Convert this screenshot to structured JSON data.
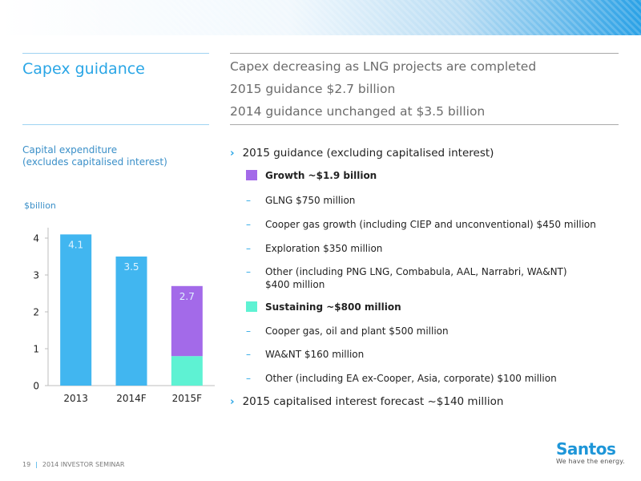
{
  "slide": {
    "title": "Capex guidance",
    "headline": [
      "Capex decreasing as LNG projects are completed",
      "2015 guidance $2.7 billion",
      "2014 guidance unchanged at $3.5 billion"
    ],
    "chart_caption": [
      "Capital expenditure",
      "(excludes capitalised interest)"
    ]
  },
  "guidance": {
    "bullet1": "2015 guidance (excluding capitalised interest)",
    "growth": {
      "label": "Growth ~$1.9 billion",
      "color": "#a36ae9",
      "items": [
        "GLNG $750 million",
        "Cooper gas growth (including CIEP and unconventional) $450 million",
        "Exploration $350 million"
      ],
      "other_line1": "Other (including PNG LNG, Combabula, AAL, Narrabri, WA&NT)",
      "other_line2": "$400 million"
    },
    "sustaining": {
      "label": "Sustaining ~$800 million",
      "color": "#5ef2d3",
      "items": [
        "Cooper gas, oil and plant $500 million",
        "WA&NT $160 million",
        "Other (including EA ex-Cooper, Asia, corporate) $100 million"
      ]
    },
    "bullet2": "2015 capitalised interest forecast ~$140 million"
  },
  "footer": {
    "page_number": "19",
    "separator": "|",
    "event": "2014 INVESTOR SEMINAR"
  },
  "logo": {
    "brand": "Santos",
    "tagline": "We have the energy."
  },
  "chart_data": {
    "type": "bar",
    "ylabel": "$billion",
    "ylim": [
      0,
      4.5
    ],
    "yticks": [
      "0",
      "1",
      "2",
      "3",
      "4"
    ],
    "categories": [
      "2013",
      "2014F",
      "2015F"
    ],
    "values": [
      4.1,
      3.5,
      2.7
    ],
    "value_labels": [
      "4.1",
      "3.5",
      "2.7"
    ],
    "stack_2015F": {
      "sustaining": 0.8,
      "growth": 1.9
    },
    "colors": {
      "bar": "#41b6f0",
      "growth": "#a36ae9",
      "sustaining": "#5ef2d3",
      "label": "#dff3ff"
    },
    "grid": false
  }
}
